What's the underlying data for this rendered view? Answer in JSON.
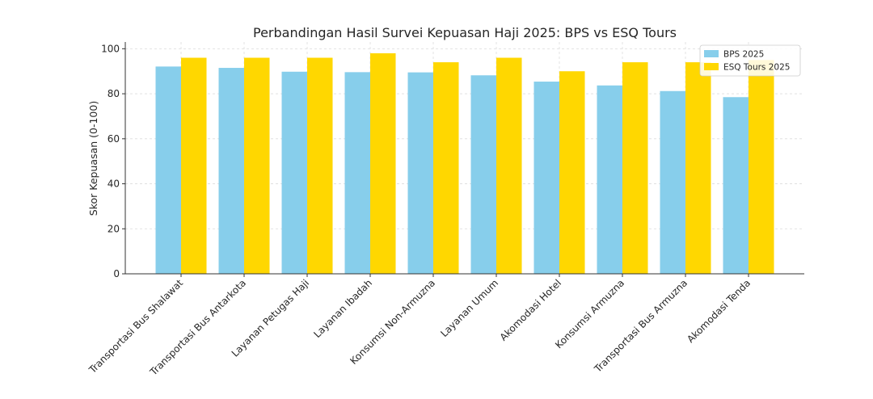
{
  "chart_data": {
    "type": "bar",
    "title": "Perbandingan Hasil Survei Kepuasan Haji 2025: BPS vs ESQ Tours",
    "xlabel": "",
    "ylabel": "Skor Kepuasan (0-100)",
    "ylim": [
      0,
      103
    ],
    "yticks": [
      0,
      20,
      40,
      60,
      80,
      100
    ],
    "grid": true,
    "legend_position": "top-right",
    "categories": [
      "Transportasi Bus Shalawat",
      "Transportasi Bus Antarkota",
      "Layanan Petugas Haji",
      "Layanan Ibadah",
      "Konsumsi Non-Armuzna",
      "Layanan Umum",
      "Akomodasi Hotel",
      "Konsumsi Armuzna",
      "Transportasi Bus Armuzna",
      "Akomodasi Tenda"
    ],
    "series": [
      {
        "name": "BPS 2025",
        "color": "#87CEEB",
        "values": [
          92.1,
          91.5,
          89.8,
          89.6,
          89.5,
          88.2,
          85.4,
          83.7,
          81.2,
          78.5
        ]
      },
      {
        "name": "ESQ Tours 2025",
        "color": "#FFD700",
        "values": [
          96,
          96,
          96,
          98,
          94,
          96,
          90,
          94,
          94,
          95
        ]
      }
    ]
  }
}
